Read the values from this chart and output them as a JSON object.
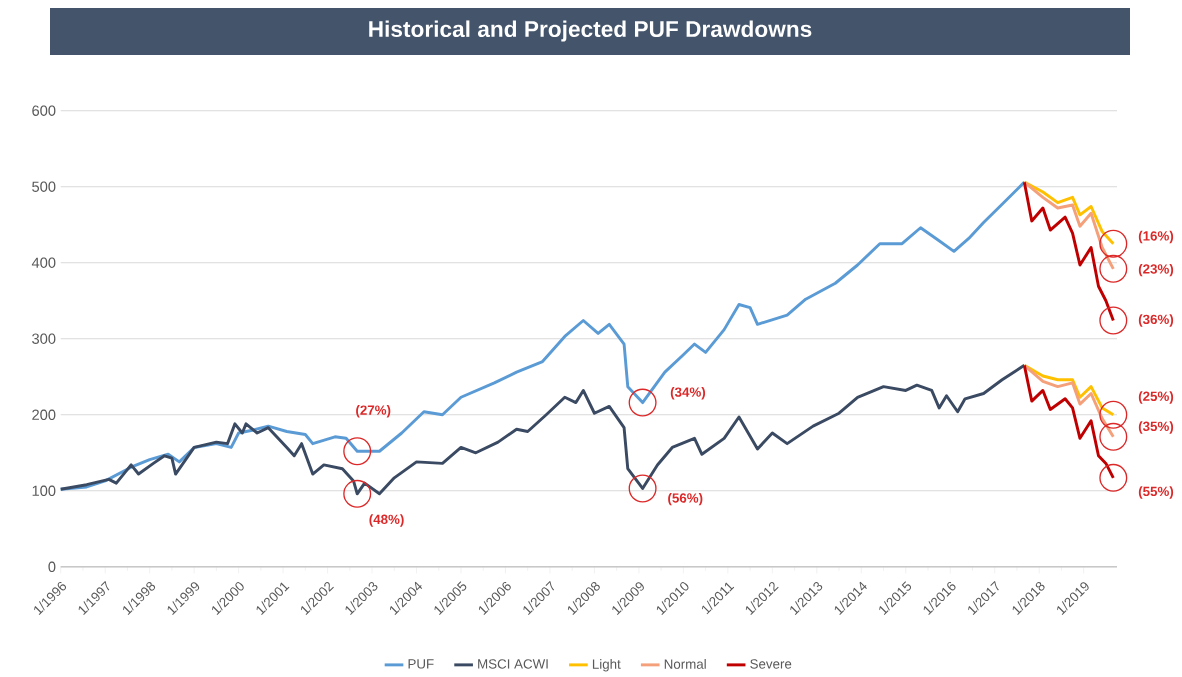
{
  "chart_data": {
    "type": "line",
    "title": "Historical and Projected PUF Drawdowns",
    "xlim": [
      "1996-01",
      "2019-10"
    ],
    "xticks": [
      {
        "value": "1996-01",
        "label": "1/1996"
      },
      {
        "value": "1997-01",
        "label": "1/1997"
      },
      {
        "value": "1998-01",
        "label": "1/1998"
      },
      {
        "value": "1999-01",
        "label": "1/1999"
      },
      {
        "value": "2000-01",
        "label": "1/2000"
      },
      {
        "value": "2001-01",
        "label": "1/2001"
      },
      {
        "value": "2002-01",
        "label": "1/2002"
      },
      {
        "value": "2003-01",
        "label": "1/2003"
      },
      {
        "value": "2004-01",
        "label": "1/2004"
      },
      {
        "value": "2005-01",
        "label": "1/2005"
      },
      {
        "value": "2006-01",
        "label": "1/2006"
      },
      {
        "value": "2007-01",
        "label": "1/2007"
      },
      {
        "value": "2008-01",
        "label": "1/2008"
      },
      {
        "value": "2009-01",
        "label": "1/2009"
      },
      {
        "value": "2010-01",
        "label": "1/2010"
      },
      {
        "value": "2011-01",
        "label": "1/2011"
      },
      {
        "value": "2012-01",
        "label": "1/2012"
      },
      {
        "value": "2013-01",
        "label": "1/2013"
      },
      {
        "value": "2014-01",
        "label": "1/2014"
      },
      {
        "value": "2015-01",
        "label": "1/2015"
      },
      {
        "value": "2016-01",
        "label": "1/2016"
      },
      {
        "value": "2017-01",
        "label": "1/2017"
      },
      {
        "value": "2018-01",
        "label": "1/2018"
      },
      {
        "value": "2019-01",
        "label": "1/2019"
      }
    ],
    "ylim": [
      0,
      600
    ],
    "yticks": [
      0,
      100,
      200,
      300,
      400,
      500,
      600
    ],
    "grid": "y",
    "legend": "bottom",
    "line_style": "solid",
    "series": [
      {
        "name": "PUF",
        "color": "#5b9bd5",
        "x": [
          "1996-01",
          "1996-08",
          "1997-01",
          "1997-08",
          "1998-01",
          "1998-06",
          "1998-09",
          "1999-01",
          "1999-07",
          "1999-11",
          "2000-01",
          "2000-05",
          "2000-09",
          "2001-02",
          "2001-07",
          "2001-09",
          "2002-03",
          "2002-06",
          "2002-09",
          "2003-03",
          "2003-09",
          "2004-03",
          "2004-08",
          "2005-01",
          "2005-10",
          "2006-04",
          "2006-11",
          "2007-05",
          "2007-10",
          "2008-02",
          "2008-05",
          "2008-09",
          "2008-10",
          "2009-02",
          "2009-08",
          "2010-01",
          "2010-04",
          "2010-07",
          "2010-12",
          "2011-04",
          "2011-07",
          "2011-09",
          "2012-05",
          "2012-10",
          "2013-06",
          "2013-12",
          "2014-06",
          "2014-12",
          "2015-05",
          "2015-10",
          "2016-02",
          "2016-06",
          "2016-10",
          "2017-03",
          "2017-09"
        ],
        "values": [
          102,
          105,
          113,
          131,
          141,
          148,
          138,
          157,
          162,
          157,
          176,
          180,
          185,
          178,
          174,
          162,
          171,
          169,
          152,
          152,
          176,
          204,
          200,
          223,
          242,
          256,
          270,
          303,
          324,
          307,
          319,
          293,
          237,
          216,
          256,
          279,
          293,
          282,
          312,
          345,
          341,
          319,
          331,
          352,
          373,
          397,
          425,
          425,
          446,
          429,
          415,
          432,
          453,
          477,
          506
        ]
      },
      {
        "name": "MSCI ACWI",
        "color": "#3b4a63",
        "x": [
          "1996-01",
          "1996-08",
          "1997-02",
          "1997-04",
          "1997-08",
          "1997-10",
          "1998-02",
          "1998-05",
          "1998-07",
          "1998-08",
          "1999-01",
          "1999-07",
          "1999-10",
          "1999-12",
          "2000-02",
          "2000-03",
          "2000-06",
          "2000-09",
          "2001-02",
          "2001-04",
          "2001-06",
          "2001-09",
          "2001-12",
          "2002-05",
          "2002-08",
          "2002-09",
          "2002-11",
          "2003-03",
          "2003-07",
          "2004-01",
          "2004-08",
          "2005-01",
          "2005-05",
          "2005-11",
          "2006-04",
          "2006-07",
          "2006-12",
          "2007-05",
          "2007-08",
          "2007-10",
          "2008-01",
          "2008-05",
          "2008-09",
          "2008-10",
          "2009-02",
          "2009-06",
          "2009-10",
          "2010-04",
          "2010-06",
          "2010-12",
          "2011-04",
          "2011-09",
          "2012-01",
          "2012-05",
          "2012-12",
          "2013-07",
          "2013-12",
          "2014-07",
          "2015-01",
          "2015-04",
          "2015-08",
          "2015-10",
          "2015-12",
          "2016-03",
          "2016-05",
          "2016-10",
          "2017-03",
          "2017-09"
        ],
        "values": [
          102,
          108,
          115,
          110,
          134,
          122,
          136,
          146,
          143,
          122,
          157,
          164,
          162,
          188,
          176,
          188,
          176,
          183,
          157,
          146,
          162,
          122,
          134,
          129,
          113,
          96,
          110,
          96,
          117,
          138,
          136,
          157,
          150,
          164,
          181,
          178,
          200,
          223,
          216,
          232,
          202,
          211,
          183,
          129,
          103,
          134,
          157,
          169,
          148,
          169,
          197,
          155,
          176,
          162,
          185,
          202,
          223,
          237,
          232,
          239,
          232,
          209,
          225,
          204,
          221,
          228,
          246,
          265
        ]
      },
      {
        "name": "Light",
        "color": "#ffc000",
        "x": [
          "2017-09",
          "2018-02",
          "2018-06",
          "2018-10",
          "2018-12",
          "2019-03",
          "2019-06",
          "2019-09"
        ],
        "values": [
          506,
          493,
          479,
          486,
          463,
          474,
          441,
          425
        ]
      },
      {
        "name": "Normal",
        "color": "#f4a07a",
        "x": [
          "2017-09",
          "2018-02",
          "2018-06",
          "2018-10",
          "2018-12",
          "2019-03",
          "2019-06",
          "2019-09"
        ],
        "values": [
          506,
          486,
          472,
          476,
          448,
          465,
          420,
          392
        ]
      },
      {
        "name": "Severe",
        "color": "#c00000",
        "x": [
          "2017-09",
          "2017-11",
          "2018-02",
          "2018-04",
          "2018-08",
          "2018-10",
          "2018-12",
          "2019-03",
          "2019-05",
          "2019-07",
          "2019-09"
        ],
        "values": [
          506,
          455,
          472,
          443,
          460,
          439,
          397,
          420,
          369,
          350,
          324
        ]
      },
      {
        "color": "#ffc000",
        "x": [
          "2017-09",
          "2018-02",
          "2018-06",
          "2018-10",
          "2018-12",
          "2019-03",
          "2019-06",
          "2019-09"
        ],
        "values": [
          265,
          251,
          246,
          246,
          223,
          237,
          209,
          200
        ]
      },
      {
        "color": "#f4a07a",
        "x": [
          "2017-09",
          "2018-02",
          "2018-06",
          "2018-10",
          "2018-12",
          "2019-03",
          "2019-06",
          "2019-09"
        ],
        "values": [
          265,
          244,
          237,
          242,
          214,
          228,
          195,
          171
        ]
      },
      {
        "color": "#c00000",
        "x": [
          "2017-09",
          "2017-11",
          "2018-02",
          "2018-04",
          "2018-08",
          "2018-10",
          "2018-12",
          "2019-03",
          "2019-05",
          "2019-07",
          "2019-09"
        ],
        "values": [
          265,
          218,
          232,
          207,
          221,
          209,
          169,
          192,
          146,
          136,
          117
        ]
      }
    ],
    "annotations": [
      {
        "text": "(27%)",
        "x": "2002-09",
        "y": 152
      },
      {
        "text": "(48%)",
        "x": "2002-09",
        "y": 96
      },
      {
        "text": "(34%)",
        "x": "2009-02",
        "y": 216
      },
      {
        "text": "(56%)",
        "x": "2009-02",
        "y": 103
      },
      {
        "text": "(16%)",
        "x": "2019-09",
        "y": 425
      },
      {
        "text": "(23%)",
        "x": "2019-09",
        "y": 392
      },
      {
        "text": "(36%)",
        "x": "2019-09",
        "y": 324
      },
      {
        "text": "(25%)",
        "x": "2019-09",
        "y": 200
      },
      {
        "text": "(35%)",
        "x": "2019-09",
        "y": 171
      },
      {
        "text": "(55%)",
        "x": "2019-09",
        "y": 117
      }
    ]
  }
}
